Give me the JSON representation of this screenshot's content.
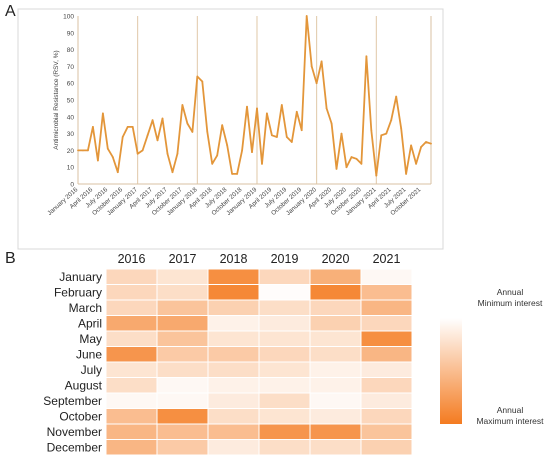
{
  "panels": {
    "a_label": "A",
    "b_label": "B"
  },
  "colors": {
    "line": "#e3963a",
    "grid": "#e0c8a8",
    "heat_max": "#f47b20",
    "heat_min": "#ffffff"
  },
  "chart_data": [
    {
      "type": "line",
      "ylabel": "Antimicrobial Resistance (RSV, %)",
      "ylim": [
        0,
        100
      ],
      "yticks": [
        0,
        10,
        20,
        30,
        40,
        50,
        60,
        70,
        80,
        90,
        100
      ],
      "grid": "vertical",
      "start": "January 2016",
      "x_tick_labels": [
        "January 2016",
        "April 2016",
        "July 2016",
        "October 2016",
        "January 2017",
        "April 2017",
        "July 2017",
        "October 2017",
        "January 2018",
        "April 2018",
        "July 2018",
        "October 2018",
        "January 2019",
        "April 2019",
        "July 2019",
        "October 2019",
        "January 2020",
        "April 2020",
        "July 2020",
        "October 2020",
        "January 2021",
        "April 2021",
        "July 2021",
        "October 2021"
      ],
      "x": [
        "2016-01",
        "2016-02",
        "2016-03",
        "2016-04",
        "2016-05",
        "2016-06",
        "2016-07",
        "2016-08",
        "2016-09",
        "2016-10",
        "2016-11",
        "2016-12",
        "2017-01",
        "2017-02",
        "2017-03",
        "2017-04",
        "2017-05",
        "2017-06",
        "2017-07",
        "2017-08",
        "2017-09",
        "2017-10",
        "2017-11",
        "2017-12",
        "2018-01",
        "2018-02",
        "2018-03",
        "2018-04",
        "2018-05",
        "2018-06",
        "2018-07",
        "2018-08",
        "2018-09",
        "2018-10",
        "2018-11",
        "2018-12",
        "2019-01",
        "2019-02",
        "2019-03",
        "2019-04",
        "2019-05",
        "2019-06",
        "2019-07",
        "2019-08",
        "2019-09",
        "2019-10",
        "2019-11",
        "2019-12",
        "2020-01",
        "2020-02",
        "2020-03",
        "2020-04",
        "2020-05",
        "2020-06",
        "2020-07",
        "2020-08",
        "2020-09",
        "2020-10",
        "2020-11",
        "2020-12",
        "2021-01",
        "2021-02",
        "2021-03",
        "2021-04",
        "2021-05",
        "2021-06",
        "2021-07",
        "2021-08",
        "2021-09",
        "2021-10",
        "2021-11",
        "2021-12"
      ],
      "values": [
        20,
        20,
        20,
        34,
        14,
        42,
        21,
        16,
        7,
        28,
        34,
        34,
        18,
        20,
        29,
        38,
        26,
        39,
        18,
        7,
        18,
        47,
        36,
        31,
        64,
        61,
        31,
        12,
        17,
        35,
        23,
        6,
        6,
        20,
        46,
        19,
        45,
        12,
        42,
        29,
        28,
        47,
        28,
        25,
        43,
        32,
        100,
        70,
        60,
        73,
        45,
        36,
        9,
        30,
        10,
        16,
        15,
        12,
        76,
        32,
        5,
        29,
        30,
        38,
        52,
        33,
        6,
        23,
        12,
        22,
        25,
        24
      ]
    },
    {
      "type": "heatmap",
      "columns": [
        "2016",
        "2017",
        "2018",
        "2019",
        "2020",
        "2021"
      ],
      "rows": [
        "January",
        "February",
        "March",
        "April",
        "May",
        "June",
        "July",
        "August",
        "September",
        "October",
        "November",
        "December"
      ],
      "values": [
        [
          0.3,
          0.2,
          0.85,
          0.3,
          0.6,
          0.05
        ],
        [
          0.3,
          0.25,
          0.9,
          0.02,
          0.9,
          0.5
        ],
        [
          0.3,
          0.45,
          0.35,
          0.25,
          0.3,
          0.55
        ],
        [
          0.65,
          0.65,
          0.1,
          0.15,
          0.35,
          0.3
        ],
        [
          0.25,
          0.45,
          0.2,
          0.2,
          0.2,
          0.85
        ],
        [
          0.8,
          0.4,
          0.4,
          0.3,
          0.25,
          0.55
        ],
        [
          0.2,
          0.25,
          0.25,
          0.2,
          0.1,
          0.15
        ],
        [
          0.25,
          0.05,
          0.1,
          0.1,
          0.1,
          0.3
        ],
        [
          0.05,
          0.05,
          0.15,
          0.25,
          0.05,
          0.15
        ],
        [
          0.5,
          0.85,
          0.25,
          0.2,
          0.15,
          0.3
        ],
        [
          0.55,
          0.5,
          0.5,
          0.8,
          0.8,
          0.45
        ],
        [
          0.55,
          0.4,
          0.15,
          0.25,
          0.25,
          0.35
        ]
      ],
      "legend": {
        "top_label": "Annual\nMinimum interest",
        "bottom_label": "Annual\nMaximum interest",
        "placement": "right"
      }
    }
  ]
}
